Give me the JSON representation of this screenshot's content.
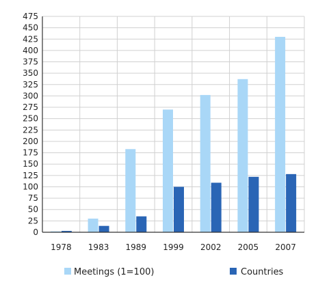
{
  "chart_data": {
    "type": "bar",
    "categories": [
      "1978",
      "1983",
      "1989",
      "1999",
      "2002",
      "2005",
      "2007"
    ],
    "series": [
      {
        "name": "Meetings (1=100)",
        "values": [
          2,
          30,
          183,
          270,
          302,
          337,
          430
        ],
        "color": "#a9d7f7"
      },
      {
        "name": "Countries",
        "values": [
          3,
          14,
          35,
          100,
          109,
          122,
          128
        ],
        "color": "#2a65b5"
      }
    ],
    "ylim": [
      0,
      475
    ],
    "yticks": [
      "0",
      "25",
      "50",
      "75",
      "100",
      "125",
      "150",
      "175",
      "200",
      "225",
      "250",
      "275",
      "300",
      "325",
      "350",
      "375",
      "400",
      "425",
      "450",
      "475"
    ],
    "grid": true,
    "legend_position": "bottom"
  }
}
